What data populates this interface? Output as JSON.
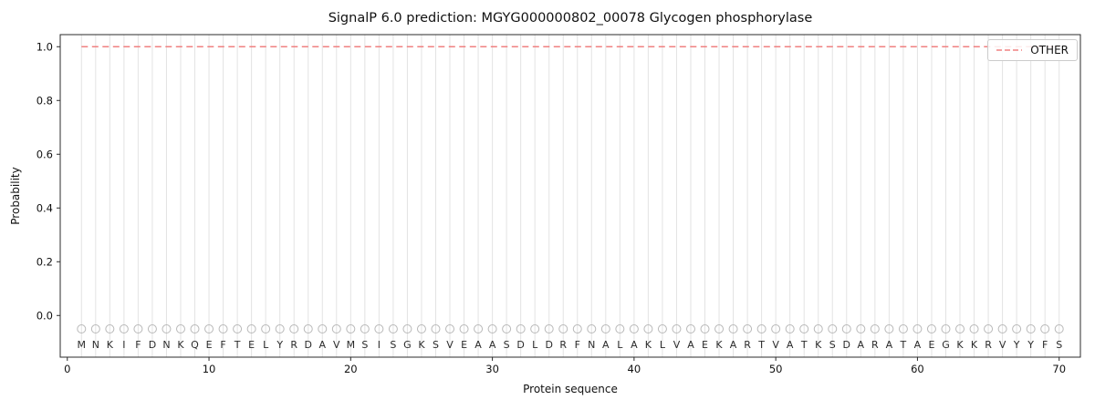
{
  "figure": {
    "background": "#ffffff"
  },
  "chart_data": {
    "type": "line",
    "title": "SignalP 6.0 prediction: MGYG000000802_00078 Glycogen phosphorylase",
    "xlabel": "Protein sequence",
    "ylabel": "Probability",
    "xlim": [
      -0.5,
      71.5
    ],
    "ylim": [
      -0.155,
      1.045
    ],
    "xticks": [
      0,
      10,
      20,
      30,
      40,
      50,
      60,
      70
    ],
    "yticks": [
      0.0,
      0.2,
      0.4,
      0.6,
      0.8,
      1.0
    ],
    "grid": "vertical gridline at every residue position, no horizontal gridlines",
    "grid_color": "#e3e3e3",
    "frame_color": "#2b2b2b",
    "legend_position": "upper right",
    "series": [
      {
        "name": "OTHER",
        "style": "dashed",
        "color": "#f08080",
        "x_range": [
          1,
          70
        ],
        "y_value": 1.0
      }
    ],
    "sequence": "MNKIFDNKQEFTELYRDAVMSISGKSVEAASDLDRFNALAKLVAEKARTVATKSDARATAEGKKRVYYFS",
    "residue_markers": {
      "symbol": "open-circle",
      "y": -0.05,
      "color": "#b9b9b9"
    },
    "sequence_row_y": -0.108,
    "tick_label_color": "#111111",
    "sequence_letter_color": "#2b2b2b"
  }
}
